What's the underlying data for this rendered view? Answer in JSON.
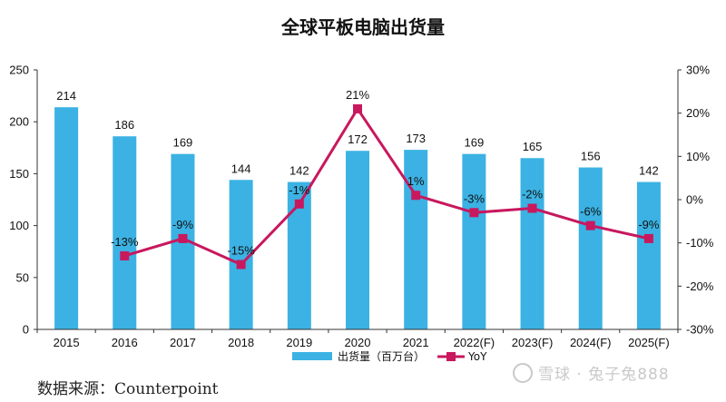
{
  "title": "全球平板电脑出货量",
  "source": "数据来源：Counterpoint",
  "watermark": "雪球 · 兔子兔888",
  "chart_data": {
    "type": "bar",
    "title": "全球平板电脑出货量",
    "categories": [
      "2015",
      "2016",
      "2017",
      "2018",
      "2019",
      "2020",
      "2021",
      "2022(F)",
      "2023(F)",
      "2024(F)",
      "2025(F)"
    ],
    "series": [
      {
        "name": "出货量（百万台）",
        "type": "bar",
        "axis": "left",
        "color": "#3BB2E3",
        "values": [
          214,
          186,
          169,
          144,
          142,
          172,
          173,
          169,
          165,
          156,
          142
        ],
        "labels": [
          "214",
          "186",
          "169",
          "144",
          "142",
          "172",
          "173",
          "169",
          "165",
          "156",
          "142"
        ]
      },
      {
        "name": "YoY",
        "type": "line",
        "axis": "right",
        "color": "#C8185E",
        "values": [
          null,
          -13,
          -9,
          -15,
          -1,
          21,
          1,
          -3,
          -2,
          -6,
          -9
        ],
        "labels": [
          null,
          "-13%",
          "-9%",
          "-15%",
          "-1%",
          "21%",
          "1%",
          "-3%",
          "-2%",
          "-6%",
          "-9%"
        ]
      }
    ],
    "y_left": {
      "min": 0,
      "max": 250,
      "ticks": [
        "0",
        "50",
        "100",
        "150",
        "200",
        "250"
      ]
    },
    "y_right": {
      "min": -30,
      "max": 30,
      "ticks": [
        "-30%",
        "-20%",
        "-10%",
        "0%",
        "10%",
        "20%",
        "30%"
      ]
    },
    "grid": false,
    "legend_position": "bottom"
  }
}
